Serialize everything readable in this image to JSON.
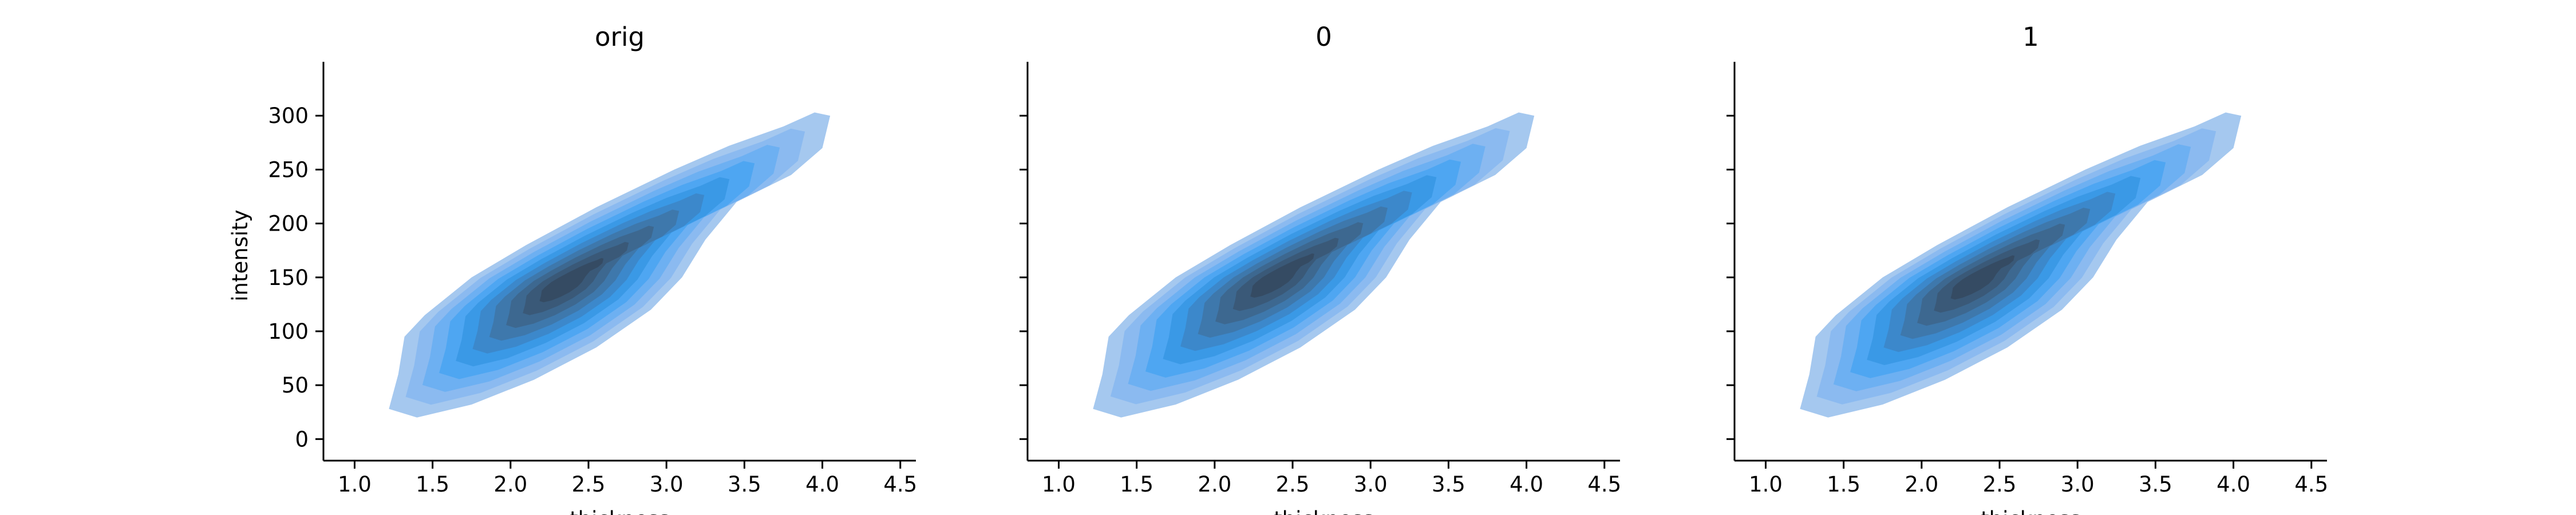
{
  "chart_data": [
    {
      "type": "kde_contour",
      "title": "orig",
      "xlabel": "thickness",
      "ylabel": "intensity",
      "xticks": [
        "1.0",
        "1.5",
        "2.0",
        "2.5",
        "3.0",
        "3.5",
        "4.0",
        "4.5"
      ],
      "yticks": [
        "0",
        "50",
        "100",
        "150",
        "200",
        "250",
        "300"
      ],
      "xlim": [
        0.8,
        4.6
      ],
      "ylim": [
        -20,
        350
      ],
      "color": "#3b9ae8",
      "density_center": [
        2.35,
        145
      ],
      "levels": 9
    },
    {
      "type": "kde_contour",
      "title": "0",
      "xlabel": "thickness",
      "ylabel": "",
      "xticks": [
        "1.0",
        "1.5",
        "2.0",
        "2.5",
        "3.0",
        "3.5",
        "4.0",
        "4.5"
      ],
      "yticks": [
        "0",
        "50",
        "100",
        "150",
        "200",
        "250",
        "300"
      ],
      "xlim": [
        0.8,
        4.6
      ],
      "ylim": [
        -20,
        350
      ],
      "color": "#3b9ae8",
      "density_center": [
        2.4,
        150
      ],
      "levels": 9
    },
    {
      "type": "kde_contour",
      "title": "1",
      "xlabel": "thickness",
      "ylabel": "",
      "xticks": [
        "1.0",
        "1.5",
        "2.0",
        "2.5",
        "3.0",
        "3.5",
        "4.0",
        "4.5"
      ],
      "yticks": [
        "0",
        "50",
        "100",
        "150",
        "200",
        "250",
        "300"
      ],
      "xlim": [
        0.8,
        4.6
      ],
      "ylim": [
        -20,
        350
      ],
      "color": "#3b9ae8",
      "density_center": [
        2.35,
        148
      ],
      "levels": 9
    }
  ],
  "contour_outline": [
    [
      1.22,
      28
    ],
    [
      1.28,
      60
    ],
    [
      1.32,
      95
    ],
    [
      1.45,
      115
    ],
    [
      1.75,
      150
    ],
    [
      2.1,
      180
    ],
    [
      2.55,
      215
    ],
    [
      3.05,
      250
    ],
    [
      3.4,
      272
    ],
    [
      3.75,
      290
    ],
    [
      3.95,
      303
    ],
    [
      4.05,
      300
    ],
    [
      4.0,
      270
    ],
    [
      3.8,
      245
    ],
    [
      3.45,
      220
    ],
    [
      3.25,
      185
    ],
    [
      3.1,
      150
    ],
    [
      2.9,
      120
    ],
    [
      2.55,
      85
    ],
    [
      2.15,
      55
    ],
    [
      1.75,
      32
    ],
    [
      1.4,
      20
    ]
  ],
  "contour_fills": [
    "#a5c8ef",
    "#8bbaf0",
    "#6db0f2",
    "#4ea6f2",
    "#3a99e6",
    "#3c88cb",
    "#3e78ac",
    "#3d6890",
    "#3a5978",
    "#354b63"
  ]
}
